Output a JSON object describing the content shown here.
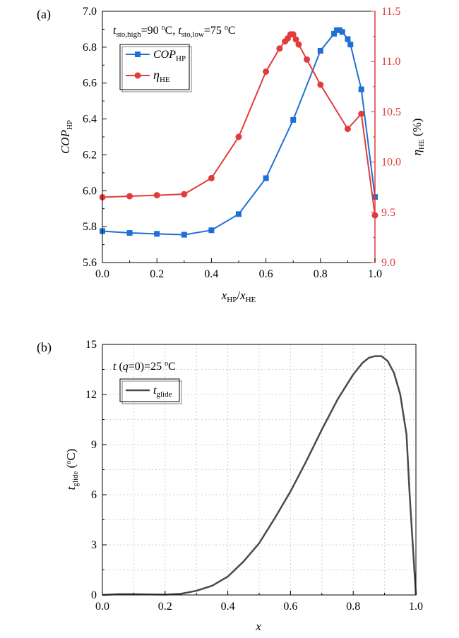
{
  "colors": {
    "cop": "#1f6fd6",
    "eta": "#e23b3b",
    "glide": "#4a4a4a",
    "axis": "#000000"
  },
  "chart_data": [
    {
      "type": "line",
      "panel_label": "(a)",
      "annotation": {
        "t": "t",
        "sub_high": "sto,high",
        "val_high": "=90 ",
        "t2": "t",
        "sub_low": "sto,low",
        "val_low": "=75 ",
        "deg": "o",
        "unit": "C"
      },
      "xlabel": {
        "a": "x",
        "a_sub": "HP",
        "slash": "/",
        "b": "x",
        "b_sub": "HE"
      },
      "ylabel": {
        "main": "COP",
        "sub": "HP"
      },
      "ylabel_right": {
        "main": "η",
        "sub": "HE",
        "unit": " (%)"
      },
      "xlim": [
        0.0,
        1.0
      ],
      "ylim": [
        5.6,
        7.0
      ],
      "ylim_right": [
        9.0,
        11.5
      ],
      "xticks": [
        "0.0",
        "0.2",
        "0.4",
        "0.6",
        "0.8",
        "1.0"
      ],
      "yticks": [
        "5.6",
        "5.8",
        "6.0",
        "6.2",
        "6.4",
        "6.6",
        "6.8",
        "7.0"
      ],
      "yticks_right": [
        "9.0",
        "9.5",
        "10.0",
        "10.5",
        "11.0",
        "11.5"
      ],
      "legend_position": "top-left",
      "series": [
        {
          "name": "COP",
          "name_sub": "HP",
          "axis": "left",
          "marker": "square",
          "x": [
            0.0,
            0.1,
            0.2,
            0.3,
            0.4,
            0.5,
            0.6,
            0.7,
            0.8,
            0.85,
            0.86,
            0.87,
            0.88,
            0.9,
            0.91,
            0.95,
            1.0
          ],
          "y": [
            5.775,
            5.765,
            5.76,
            5.755,
            5.78,
            5.87,
            6.07,
            6.395,
            6.78,
            6.875,
            6.895,
            6.895,
            6.885,
            6.845,
            6.815,
            6.565,
            5.965
          ]
        },
        {
          "name": "η",
          "name_sub": "HE",
          "axis": "right",
          "marker": "circle",
          "x": [
            0.0,
            0.1,
            0.2,
            0.3,
            0.4,
            0.5,
            0.6,
            0.65,
            0.67,
            0.68,
            0.69,
            0.7,
            0.71,
            0.72,
            0.75,
            0.8,
            0.9,
            0.95,
            1.0
          ],
          "y": [
            9.65,
            9.66,
            9.67,
            9.68,
            9.84,
            10.25,
            10.9,
            11.13,
            11.2,
            11.23,
            11.27,
            11.27,
            11.22,
            11.17,
            11.02,
            10.77,
            10.33,
            10.48,
            9.47
          ]
        }
      ]
    },
    {
      "type": "line",
      "panel_label": "(b)",
      "annotation": {
        "t": "t",
        "paren_open": " (",
        "q": "q",
        "eq": "=0)=25 ",
        "deg": "o",
        "unit": "C"
      },
      "xlabel": {
        "main": "x"
      },
      "ylabel": {
        "main": "t",
        "sub": "glide",
        "unit_open": " (",
        "deg": "o",
        "unit": "C)"
      },
      "xlim": [
        0.0,
        1.0
      ],
      "ylim": [
        0,
        15
      ],
      "xticks": [
        "0.0",
        "0.2",
        "0.4",
        "0.6",
        "0.8",
        "1.0"
      ],
      "yticks": [
        "0",
        "3",
        "6",
        "9",
        "12",
        "15"
      ],
      "grid": true,
      "legend_position": "top-left",
      "series": [
        {
          "name": "t",
          "name_sub": "glide",
          "x": [
            0.0,
            0.05,
            0.1,
            0.15,
            0.2,
            0.25,
            0.3,
            0.35,
            0.4,
            0.45,
            0.5,
            0.55,
            0.6,
            0.65,
            0.7,
            0.75,
            0.8,
            0.83,
            0.85,
            0.87,
            0.89,
            0.91,
            0.93,
            0.95,
            0.97,
            0.98,
            0.99,
            1.0
          ],
          "y": [
            0.0,
            0.05,
            0.05,
            0.03,
            0.02,
            0.07,
            0.25,
            0.55,
            1.1,
            2.0,
            3.1,
            4.6,
            6.2,
            8.0,
            9.9,
            11.7,
            13.2,
            13.9,
            14.2,
            14.3,
            14.3,
            14.0,
            13.3,
            12.0,
            9.6,
            6.0,
            3.0,
            0.0
          ]
        }
      ]
    }
  ]
}
